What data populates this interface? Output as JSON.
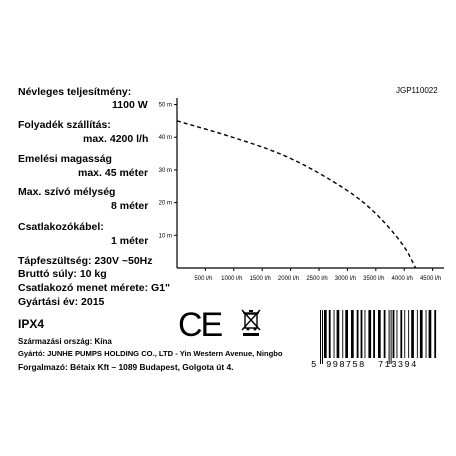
{
  "specs": {
    "power_label": "Névleges teljesítmény:",
    "power_value": "1100 W",
    "flow_label": "Folyadék szállítás:",
    "flow_value": "max. 4200 l/h",
    "lift_label": "Emelési magasság",
    "lift_value": "max. 45 méter",
    "suction_label": "Max. szívó mélység",
    "suction_value": "8 méter",
    "cable_label": "Csatlakozókábel:",
    "cable_value": "1 méter",
    "voltage": "Tápfeszültség: 230V ~50Hz",
    "weight": "Bruttó súly: 10 kg",
    "thread": "Csatlakozó menet mérete: G1\"",
    "year": "Gyártási év: 2015",
    "ip": "IPX4"
  },
  "model_code": "JGP110022",
  "origin": {
    "country": "Származási ország: Kína",
    "manufacturer": "Gyártó: JUNHE PUMPS HOLDING CO., LTD - Yin Western Avenue, Ningbo",
    "distributor": "Forgalmazó: Bétaix Kft – 1089 Budapest, Golgota út 4."
  },
  "marks": {
    "ce": "CE",
    "weee_icon": "crossed-out-wheelie-bin-icon"
  },
  "barcode": {
    "first_digit": "5",
    "group1": "998758",
    "group2": "713394"
  },
  "chart_data": {
    "type": "line",
    "title": "",
    "xlabel": "",
    "ylabel": "",
    "x_ticks": [
      "500 l/h",
      "1000 l/h",
      "1500 l/h",
      "2000 l/h",
      "2500 l/h",
      "3000 l/h",
      "3500 l/h",
      "4000 l/h",
      "4500 l/h"
    ],
    "y_ticks": [
      "10 m",
      "20 m",
      "30 m",
      "40 m",
      "50 m"
    ],
    "xlim": [
      0,
      4700
    ],
    "ylim": [
      0,
      52
    ],
    "series": [
      {
        "x": [
          0,
          1000,
          2000,
          3000,
          3500,
          4000,
          4200
        ],
        "y": [
          45,
          40,
          34,
          24,
          17,
          7,
          0
        ],
        "style": "dashed"
      }
    ]
  }
}
